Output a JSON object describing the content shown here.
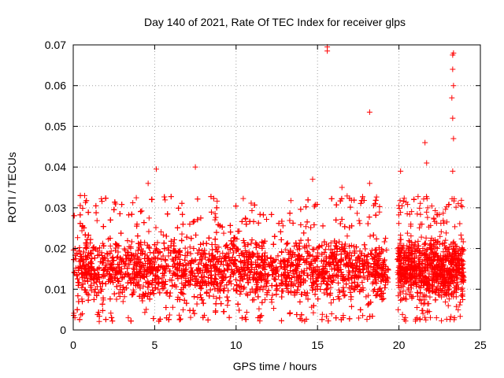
{
  "chart_data": {
    "type": "scatter",
    "title": "Day 140 of 2021, Rate Of TEC Index for receiver glps",
    "xlabel": "GPS time / hours",
    "ylabel": "ROTI / TECUs",
    "xlim": [
      0,
      25
    ],
    "ylim": [
      0,
      0.07
    ],
    "xticks": [
      0,
      5,
      10,
      15,
      20,
      25
    ],
    "xtick_labels": [
      "0",
      "5",
      "10",
      "15",
      "20",
      "25"
    ],
    "yticks": [
      0,
      0.01,
      0.02,
      0.03,
      0.04,
      0.05,
      0.06,
      0.07
    ],
    "ytick_labels": [
      "0",
      "0.01",
      "0.02",
      "0.03",
      "0.04",
      "0.05",
      "0.06",
      "0.07"
    ],
    "grid": true,
    "marker": "+",
    "color": "#ff0000",
    "series": [
      {
        "name": "ROTI",
        "segments": [
          {
            "x_start": 0.0,
            "x_end": 19.35,
            "typical_range": [
              0.005,
              0.025
            ]
          },
          {
            "x_start": 19.9,
            "x_end": 24.0,
            "typical_range": [
              0.005,
              0.025
            ]
          }
        ],
        "notable_points": [
          {
            "x": 0.7,
            "y": 0.033
          },
          {
            "x": 4.6,
            "y": 0.036
          },
          {
            "x": 5.1,
            "y": 0.0395
          },
          {
            "x": 7.5,
            "y": 0.04
          },
          {
            "x": 14.7,
            "y": 0.037
          },
          {
            "x": 15.6,
            "y": 0.0695
          },
          {
            "x": 15.6,
            "y": 0.0685
          },
          {
            "x": 16.5,
            "y": 0.035
          },
          {
            "x": 18.2,
            "y": 0.0535
          },
          {
            "x": 18.2,
            "y": 0.036
          },
          {
            "x": 20.1,
            "y": 0.039
          },
          {
            "x": 21.6,
            "y": 0.046
          },
          {
            "x": 21.7,
            "y": 0.041
          },
          {
            "x": 23.3,
            "y": 0.0675
          },
          {
            "x": 23.35,
            "y": 0.068
          },
          {
            "x": 23.3,
            "y": 0.064
          },
          {
            "x": 23.35,
            "y": 0.06
          },
          {
            "x": 23.25,
            "y": 0.057
          },
          {
            "x": 23.3,
            "y": 0.052
          },
          {
            "x": 23.35,
            "y": 0.047
          },
          {
            "x": 23.3,
            "y": 0.039
          }
        ]
      }
    ]
  }
}
